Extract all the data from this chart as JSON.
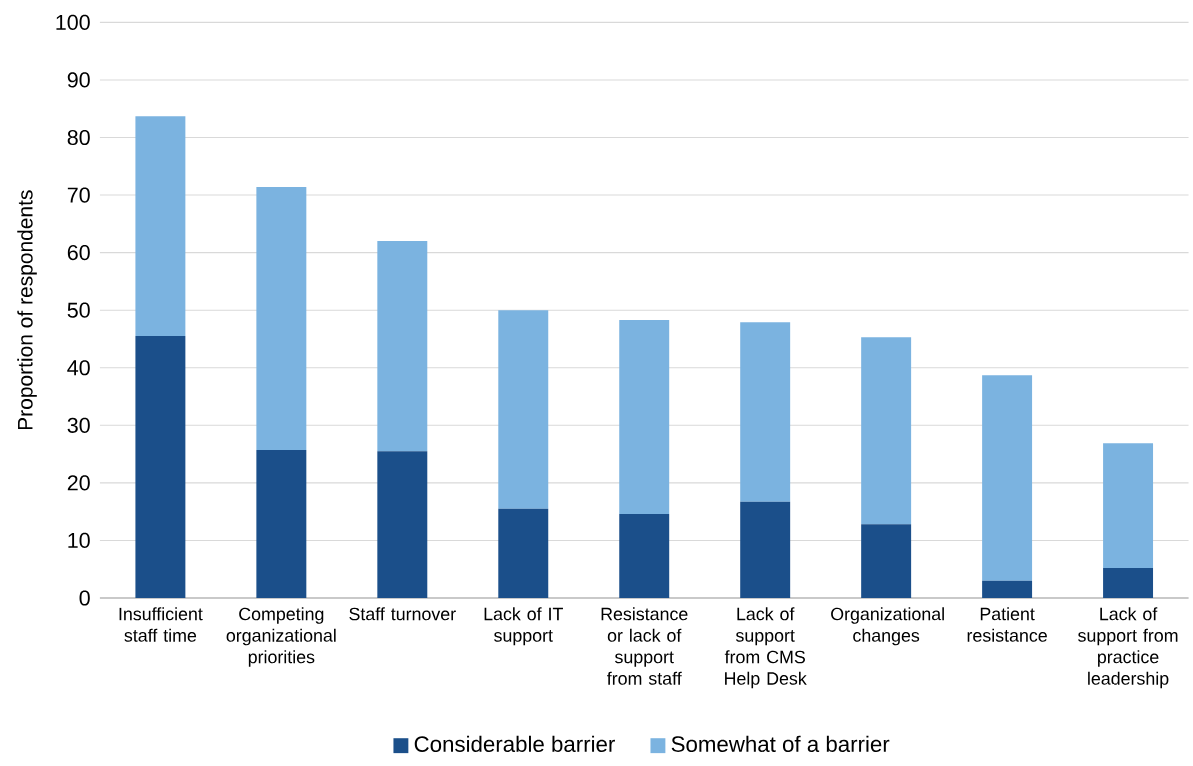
{
  "chart_data": {
    "type": "bar",
    "stacked": true,
    "ylabel": "Proportion of respondents",
    "categories": [
      "Insufficient staff time",
      "Competing organizational priorities",
      "Staff turnover",
      "Lack of IT support",
      "Resistance or lack of support from staff",
      "Lack of support from CMS Help Desk",
      "Organizational changes",
      "Patient resistance",
      "Lack of support from practice leadership"
    ],
    "series": [
      {
        "name": "Considerable barrier",
        "color": "#1b4f8a",
        "values": [
          45.5,
          25.7,
          25.5,
          15.5,
          14.6,
          16.7,
          12.8,
          3.0,
          5.2
        ]
      },
      {
        "name": "Somewhat of a barrier",
        "color": "#7bb3e0",
        "values": [
          38.2,
          45.7,
          36.5,
          34.5,
          33.7,
          31.2,
          32.5,
          35.7,
          21.7
        ]
      }
    ],
    "ylim": [
      0,
      100
    ],
    "yticks": [
      0,
      10,
      20,
      30,
      40,
      50,
      60,
      70,
      80,
      90,
      100
    ],
    "grid": "y",
    "legend": "bottom"
  }
}
